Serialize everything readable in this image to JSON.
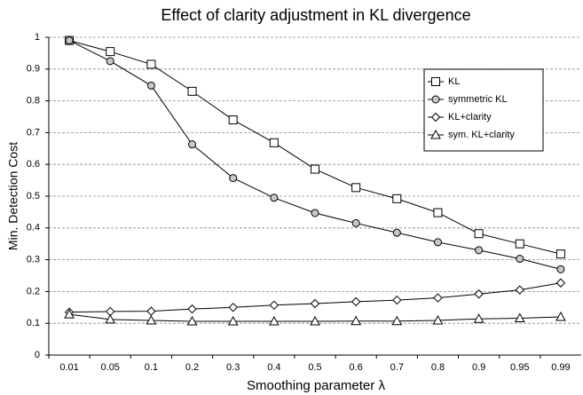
{
  "chart_data": {
    "type": "line",
    "title": "Effect of clarity adjustment in KL divergence",
    "x_label": "Smoothing parameter λ",
    "y_label": "Min. Detection Cost",
    "categories": [
      "0.01",
      "0.05",
      "0.1",
      "0.2",
      "0.3",
      "0.4",
      "0.5",
      "0.6",
      "0.7",
      "0.8",
      "0.9",
      "0.95",
      "0.99"
    ],
    "series": [
      {
        "name": "KL",
        "color": "#000000",
        "marker": "square",
        "marker_fill": "#ffffff",
        "values": [
          0.99,
          0.955,
          0.915,
          0.83,
          0.74,
          0.668,
          0.585,
          0.527,
          0.492,
          0.448,
          0.382,
          0.35,
          0.318
        ]
      },
      {
        "name": "symmetric KL",
        "color": "#000000",
        "marker": "circle",
        "marker_fill": "#c8c8c8",
        "values": [
          0.99,
          0.925,
          0.848,
          0.663,
          0.557,
          0.495,
          0.447,
          0.415,
          0.385,
          0.355,
          0.33,
          0.303,
          0.27
        ]
      },
      {
        "name": "KL+clarity",
        "color": "#000000",
        "marker": "diamond",
        "marker_fill": "#ffffff",
        "values": [
          0.135,
          0.137,
          0.138,
          0.145,
          0.15,
          0.157,
          0.162,
          0.168,
          0.173,
          0.18,
          0.192,
          0.205,
          0.227
        ]
      },
      {
        "name": "sym. KL+clarity",
        "color": "#000000",
        "marker": "triangle",
        "marker_fill": "#ffffff",
        "values": [
          0.128,
          0.112,
          0.109,
          0.106,
          0.106,
          0.106,
          0.106,
          0.107,
          0.107,
          0.109,
          0.114,
          0.116,
          0.12
        ]
      }
    ],
    "ylim": [
      0,
      1
    ],
    "yticks": [
      0,
      0.1,
      0.2,
      0.3,
      0.4,
      0.5,
      0.6,
      0.7,
      0.8,
      0.9,
      1
    ],
    "grid": true,
    "legend": "upper right"
  }
}
